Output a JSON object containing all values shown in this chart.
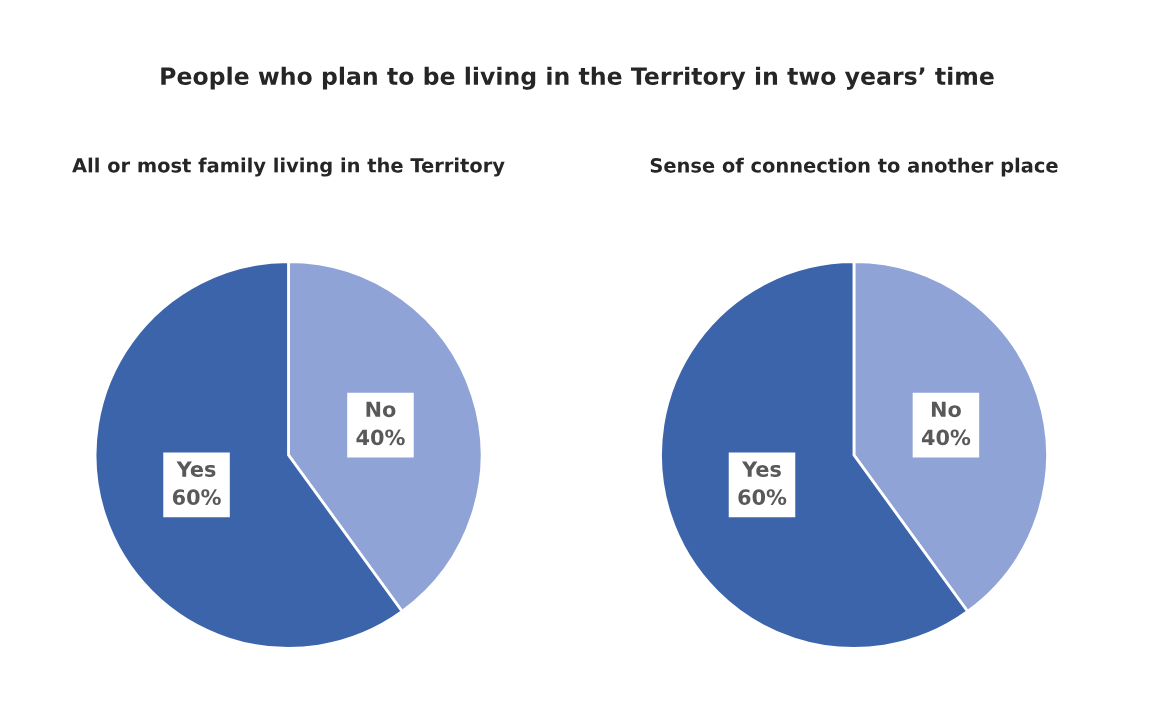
{
  "chart_data": [
    {
      "type": "pie",
      "title": "People who plan to be living in the Territory in two years’ time",
      "subtitle": "All or most family living in the Territory",
      "categories": [
        "No",
        "Yes"
      ],
      "values": [
        40,
        60
      ],
      "colors": [
        "#8fa3d6",
        "#3c64ab"
      ],
      "value_labels": [
        "40%",
        "60%"
      ],
      "legend": false
    },
    {
      "type": "pie",
      "subtitle": "Sense of connection to another place",
      "categories": [
        "No",
        "Yes"
      ],
      "values": [
        40,
        60
      ],
      "colors": [
        "#8fa3d6",
        "#3c64ab"
      ],
      "value_labels": [
        "40%",
        "60%"
      ],
      "legend": false
    }
  ]
}
